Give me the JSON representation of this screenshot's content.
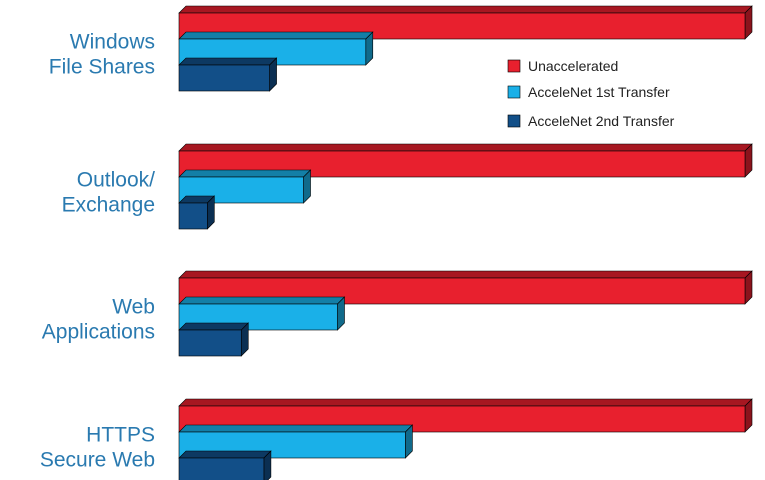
{
  "chart_data": {
    "type": "bar",
    "orientation": "horizontal",
    "style": "3d",
    "label_color": "#2a7ab0",
    "categories": [
      [
        "Windows",
        "File Shares"
      ],
      [
        "Outlook/",
        "Exchange"
      ],
      [
        "Web",
        "Applications"
      ],
      [
        "HTTPS",
        "Secure Web"
      ]
    ],
    "series": [
      {
        "name": "Unaccelerated",
        "color": "#e8202e",
        "values": [
          100,
          100,
          100,
          100
        ]
      },
      {
        "name": "AcceleNet 1st Transfer",
        "color": "#1ab0e8",
        "values": [
          33,
          22,
          28,
          40
        ]
      },
      {
        "name": "AcceleNet 2nd Transfer",
        "color": "#124f88",
        "values": [
          16,
          5,
          11,
          15
        ]
      }
    ],
    "xlim": [
      0,
      100
    ],
    "grid": false,
    "legend_position": "top-right"
  }
}
